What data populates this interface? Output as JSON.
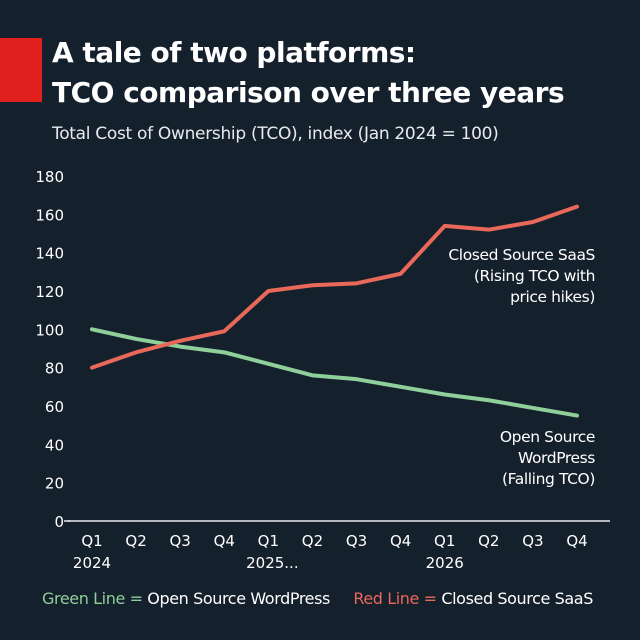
{
  "title_lines": [
    "A tale of two platforms:",
    "TCO comparison over three years"
  ],
  "subtitle": "Total Cost of Ownership (TCO), index (Jan 2024 = 100)",
  "colors": {
    "background": "#15202d",
    "accent": "#e0201c",
    "green": "#8fcf9a",
    "red": "#e8685a"
  },
  "chart_data": {
    "type": "line",
    "ylim": [
      0,
      180
    ],
    "yticks": [
      0,
      20,
      40,
      60,
      80,
      100,
      120,
      140,
      160,
      180
    ],
    "categories": [
      "Q1 2024",
      "Q2 2024",
      "Q3 2024",
      "Q4 2024",
      "Q1 2025",
      "Q2 2025",
      "Q3 2025",
      "Q4 2025",
      "Q1 2026",
      "Q2 2026",
      "Q3 2026",
      "Q4 2026"
    ],
    "xtick_labels": [
      [
        "Q1",
        "2024"
      ],
      [
        "Q2",
        ""
      ],
      [
        "Q3",
        ""
      ],
      [
        "Q4",
        ""
      ],
      [
        "Q1",
        "2025..."
      ],
      [
        "Q2",
        ""
      ],
      [
        "Q3",
        ""
      ],
      [
        "Q4",
        ""
      ],
      [
        "Q1",
        "2026"
      ],
      [
        "Q2",
        ""
      ],
      [
        "Q3",
        ""
      ],
      [
        "Q4",
        ""
      ]
    ],
    "grid": false,
    "series": [
      {
        "name": "Open Source WordPress",
        "color": "#8fcf9a",
        "label_lines": [
          "Open Source",
          "WordPress",
          "(Falling TCO)"
        ],
        "values": [
          100,
          95,
          91,
          88,
          82,
          76,
          74,
          70,
          66,
          63,
          59,
          55
        ]
      },
      {
        "name": "Closed Source SaaS",
        "color": "#e8685a",
        "label_lines": [
          "Closed Source SaaS",
          "(Rising TCO with",
          "price hikes)"
        ],
        "values": [
          80,
          88,
          94,
          99,
          120,
          123,
          124,
          129,
          154,
          152,
          156,
          164
        ]
      }
    ]
  },
  "legend": {
    "green_key": "Green Line =",
    "green_text": "Open Source WordPress",
    "red_key": "Red Line =",
    "red_text": "Closed Source SaaS"
  }
}
